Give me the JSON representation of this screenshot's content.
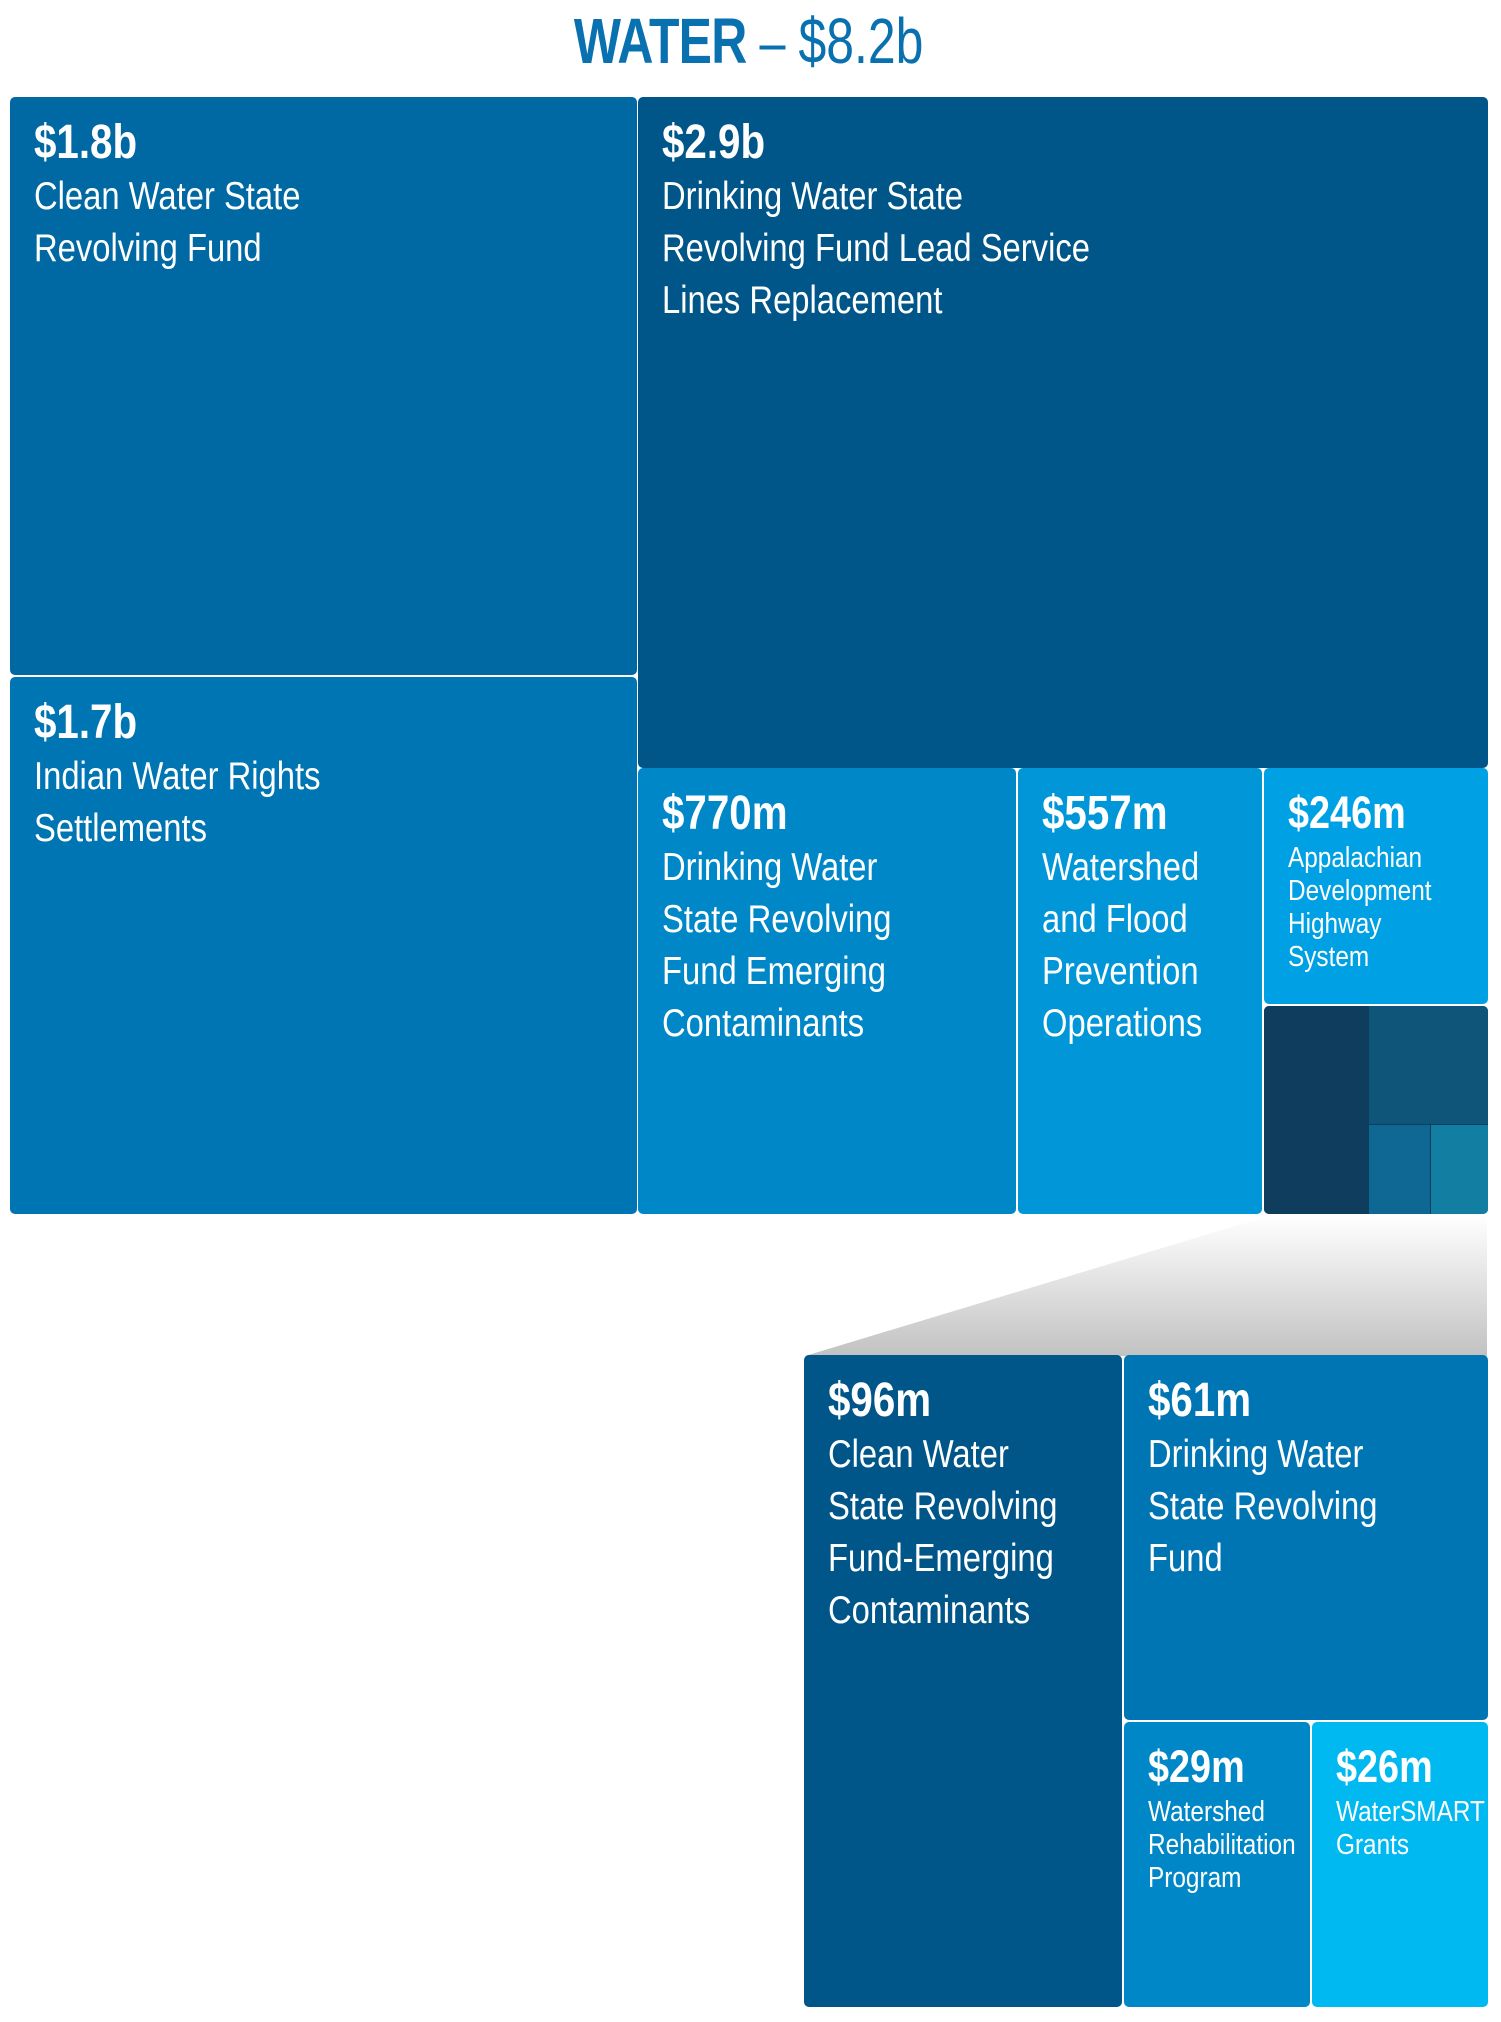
{
  "title": {
    "main": "WATER",
    "separator": " – ",
    "total": "$8.2b"
  },
  "colors": {
    "title": "#0a71b0",
    "darkest": "#0f3d5e",
    "dark": "#005689",
    "medium": "#0068a3",
    "mid": "#0075b4",
    "light": "#0087c8",
    "lighter": "#0096d8",
    "lightest": "#00a1e4",
    "cyan": "#00b9f0",
    "sub_teal": "#127fa2"
  },
  "chart_data": {
    "type": "treemap",
    "title": "WATER – $8.2b",
    "total": "$8.2b",
    "items": [
      {
        "amount": "$1.8b",
        "label": "Clean Water State Revolving Fund"
      },
      {
        "amount": "$2.9b",
        "label": "Drinking Water State Revolving Fund Lead Service Lines Replacement"
      },
      {
        "amount": "$1.7b",
        "label": "Indian Water Rights Settlements"
      },
      {
        "amount": "$770m",
        "label": "Drinking Water State Revolving Fund Emerging Contaminants"
      },
      {
        "amount": "$557m",
        "label": "Watershed and Flood Prevention Operations"
      },
      {
        "amount": "$246m",
        "label": "Appalachian Development Highway System"
      }
    ],
    "detail_items": [
      {
        "amount": "$96m",
        "label": "Clean Water State Revolving Fund-Emerging Contaminants"
      },
      {
        "amount": "$61m",
        "label": "Drinking Water State Revolving Fund"
      },
      {
        "amount": "$29m",
        "label": "Watershed Rehabilitation Program"
      },
      {
        "amount": "$26m",
        "label": "WaterSMART Grants"
      }
    ]
  },
  "tiles": {
    "cwsrf": {
      "amount": "$1.8b",
      "label": "Clean Water State\nRevolving Fund"
    },
    "dwsrf_lead": {
      "amount": "$2.9b",
      "label": "Drinking Water State\nRevolving Fund Lead Service\nLines Replacement"
    },
    "indian": {
      "amount": "$1.7b",
      "label": "Indian Water Rights\nSettlements"
    },
    "dwsrf_emerging": {
      "amount": "$770m",
      "label": "Drinking Water\nState Revolving\nFund Emerging\nContaminants"
    },
    "watershed_flood": {
      "amount": "$557m",
      "label": "Watershed\nand Flood\nPrevention\nOperations"
    },
    "appalachian": {
      "amount": "$246m",
      "label": "Appalachian\nDevelopment\nHighway\nSystem"
    },
    "cwsrf_emerging": {
      "amount": "$96m",
      "label": "Clean Water\nState Revolving\nFund-Emerging\nContaminants"
    },
    "dwsrf": {
      "amount": "$61m",
      "label": "Drinking Water\nState Revolving\nFund"
    },
    "watershed_rehab": {
      "amount": "$29m",
      "label": "Watershed\nRehabilitation\nProgram"
    },
    "watersmart": {
      "amount": "$26m",
      "label": "WaterSMART\nGrants"
    }
  }
}
